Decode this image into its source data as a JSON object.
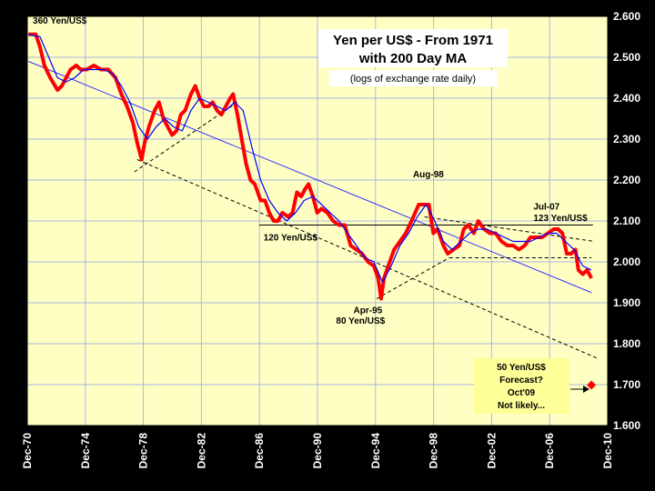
{
  "chart_data": {
    "type": "line",
    "title": "Yen per US$ - From 1971",
    "title_line2": "with 200 Day MA",
    "subtitle": "(logs of exchange rate daily)",
    "ylim": [
      1.6,
      2.6
    ],
    "yticks": [
      "1.600",
      "1.700",
      "1.800",
      "1.900",
      "2.000",
      "2.100",
      "2.200",
      "2.300",
      "2.400",
      "2.500",
      "2.600"
    ],
    "xlim": [
      1970.92,
      2010.92
    ],
    "xticks": [
      {
        "label": "Dec-70",
        "x": 1970.92
      },
      {
        "label": "Dec-74",
        "x": 1974.92
      },
      {
        "label": "Dec-78",
        "x": 1978.92
      },
      {
        "label": "Dec-82",
        "x": 1982.92
      },
      {
        "label": "Dec-86",
        "x": 1986.92
      },
      {
        "label": "Dec-90",
        "x": 1990.92
      },
      {
        "label": "Dec-94",
        "x": 1994.92
      },
      {
        "label": "Dec-98",
        "x": 1998.92
      },
      {
        "label": "Dec-02",
        "x": 2002.92
      },
      {
        "label": "Dec-06",
        "x": 2006.92
      },
      {
        "label": "Dec-10",
        "x": 2010.92
      }
    ],
    "grid": true,
    "series": [
      {
        "color": "#ff0000",
        "x": [
          1971.0,
          1971.5,
          1971.8,
          1972.1,
          1972.5,
          1973.0,
          1973.3,
          1973.6,
          1973.9,
          1974.3,
          1974.6,
          1975.0,
          1975.5,
          1976.0,
          1976.5,
          1977.0,
          1977.4,
          1977.8,
          1978.2,
          1978.5,
          1978.8,
          1979.0,
          1979.3,
          1979.7,
          1980.0,
          1980.3,
          1980.6,
          1980.9,
          1981.2,
          1981.5,
          1981.8,
          1982.2,
          1982.5,
          1982.8,
          1983.1,
          1983.4,
          1983.7,
          1984.0,
          1984.3,
          1984.6,
          1984.9,
          1985.1,
          1985.4,
          1985.7,
          1986.0,
          1986.3,
          1986.6,
          1987.0,
          1987.3,
          1987.6,
          1987.9,
          1988.2,
          1988.5,
          1988.9,
          1989.2,
          1989.5,
          1989.8,
          1990.1,
          1990.3,
          1990.6,
          1990.9,
          1991.2,
          1991.6,
          1992.0,
          1992.4,
          1992.8,
          1993.2,
          1993.6,
          1994.0,
          1994.4,
          1994.8,
          1995.1,
          1995.3,
          1995.5,
          1995.8,
          1996.2,
          1996.6,
          1997.0,
          1997.4,
          1997.9,
          1998.3,
          1998.6,
          1998.9,
          1999.2,
          1999.6,
          1999.9,
          2000.3,
          2000.7,
          2001.0,
          2001.3,
          2001.7,
          2002.0,
          2002.4,
          2002.8,
          2003.2,
          2003.6,
          2004.0,
          2004.4,
          2004.8,
          2005.2,
          2005.6,
          2006.0,
          2006.4,
          2006.8,
          2007.2,
          2007.5,
          2007.8,
          2008.1,
          2008.4,
          2008.7,
          2008.9,
          2009.2,
          2009.5,
          2009.8
        ],
        "values": [
          2.556,
          2.556,
          2.525,
          2.48,
          2.45,
          2.42,
          2.43,
          2.45,
          2.47,
          2.48,
          2.47,
          2.47,
          2.48,
          2.47,
          2.47,
          2.45,
          2.41,
          2.38,
          2.34,
          2.29,
          2.25,
          2.29,
          2.33,
          2.37,
          2.39,
          2.35,
          2.33,
          2.31,
          2.32,
          2.36,
          2.37,
          2.41,
          2.43,
          2.4,
          2.38,
          2.38,
          2.39,
          2.37,
          2.36,
          2.38,
          2.4,
          2.41,
          2.36,
          2.3,
          2.24,
          2.2,
          2.19,
          2.15,
          2.15,
          2.12,
          2.1,
          2.1,
          2.12,
          2.11,
          2.12,
          2.17,
          2.16,
          2.18,
          2.19,
          2.16,
          2.12,
          2.13,
          2.12,
          2.1,
          2.09,
          2.09,
          2.04,
          2.03,
          2.02,
          2.0,
          1.99,
          1.96,
          1.91,
          1.96,
          1.99,
          2.03,
          2.05,
          2.07,
          2.1,
          2.14,
          2.14,
          2.14,
          2.07,
          2.08,
          2.04,
          2.02,
          2.03,
          2.04,
          2.08,
          2.09,
          2.07,
          2.1,
          2.08,
          2.07,
          2.07,
          2.05,
          2.04,
          2.04,
          2.03,
          2.04,
          2.06,
          2.06,
          2.06,
          2.07,
          2.08,
          2.08,
          2.07,
          2.02,
          2.02,
          2.03,
          1.98,
          1.97,
          1.98,
          1.96
        ]
      },
      {
        "color": "#0000ff",
        "x": [
          1971.0,
          1971.8,
          1972.4,
          1973.0,
          1973.6,
          1974.2,
          1974.8,
          1975.5,
          1976.2,
          1976.8,
          1977.4,
          1978.0,
          1978.6,
          1979.2,
          1979.8,
          1980.4,
          1981.0,
          1981.6,
          1982.2,
          1982.8,
          1983.4,
          1984.0,
          1984.6,
          1985.2,
          1985.8,
          1986.4,
          1987.0,
          1987.6,
          1988.2,
          1988.8,
          1989.4,
          1990.0,
          1990.6,
          1991.2,
          1991.8,
          1992.4,
          1993.0,
          1993.6,
          1994.2,
          1994.8,
          1995.4,
          1996.0,
          1996.6,
          1997.2,
          1997.8,
          1998.4,
          1999.0,
          1999.6,
          2000.2,
          2000.8,
          2001.4,
          2002.0,
          2002.6,
          2003.2,
          2003.8,
          2004.4,
          2005.0,
          2005.6,
          2006.2,
          2006.8,
          2007.4,
          2008.0,
          2008.6,
          2009.2,
          2009.8
        ],
        "values": [
          2.556,
          2.55,
          2.5,
          2.45,
          2.44,
          2.45,
          2.47,
          2.47,
          2.47,
          2.46,
          2.43,
          2.39,
          2.33,
          2.3,
          2.33,
          2.35,
          2.33,
          2.32,
          2.37,
          2.4,
          2.39,
          2.38,
          2.37,
          2.39,
          2.37,
          2.28,
          2.2,
          2.15,
          2.12,
          2.1,
          2.12,
          2.15,
          2.16,
          2.14,
          2.12,
          2.1,
          2.07,
          2.04,
          2.01,
          2.0,
          1.95,
          1.99,
          2.04,
          2.07,
          2.11,
          2.14,
          2.1,
          2.05,
          2.03,
          2.05,
          2.07,
          2.08,
          2.08,
          2.07,
          2.06,
          2.05,
          2.05,
          2.05,
          2.06,
          2.07,
          2.07,
          2.05,
          2.03,
          1.99,
          1.98
        ]
      }
    ],
    "trend_lines": [
      {
        "style": "solid",
        "color": "#3333ff",
        "x": [
          1971.0,
          2009.8
        ],
        "values": [
          2.49,
          1.925
        ]
      },
      {
        "style": "solid",
        "color": "#000000",
        "x": [
          1986.9,
          2009.9
        ],
        "values": [
          2.09,
          2.09
        ]
      },
      {
        "style": "dashed",
        "color": "#000000",
        "x": [
          1978.3,
          1985.4
        ],
        "values": [
          2.22,
          2.39
        ]
      },
      {
        "style": "dashed",
        "color": "#000000",
        "x": [
          1978.5,
          2010.3
        ],
        "values": [
          2.25,
          1.763
        ]
      },
      {
        "style": "dashed",
        "color": "#000000",
        "x": [
          1998.3,
          2010.0
        ],
        "values": [
          2.11,
          2.05
        ]
      },
      {
        "style": "dashed",
        "color": "#000000",
        "x": [
          1995.0,
          2000.0
        ],
        "values": [
          1.91,
          2.01
        ]
      },
      {
        "style": "dashed",
        "color": "#000000",
        "x": [
          2000.0,
          2009.8
        ],
        "values": [
          2.01,
          2.01
        ]
      }
    ],
    "forecast_point": {
      "x": 2009.8,
      "value": 1.699,
      "color": "#ff0000"
    },
    "annotations": [
      {
        "text": "360 Yen/US$",
        "x": 1971.3,
        "value": 2.582
      },
      {
        "text": "Aug-98",
        "x": 1997.5,
        "value": 2.207
      },
      {
        "text": "Jul-07",
        "x": 2005.8,
        "value": 2.128
      },
      {
        "text": "123 Yen/US$",
        "x": 2005.8,
        "value": 2.1
      },
      {
        "text": "120 Yen/US$",
        "x": 1987.2,
        "value": 2.052
      },
      {
        "text": "Apr-95",
        "x": 1993.4,
        "value": 1.875
      },
      {
        "text": "80 Yen/US$",
        "x": 1992.2,
        "value": 1.849
      }
    ],
    "forecast_box": {
      "lines": [
        "50 Yen/US$",
        "Forecast?",
        "Oct'09",
        "Not likely..."
      ]
    }
  }
}
